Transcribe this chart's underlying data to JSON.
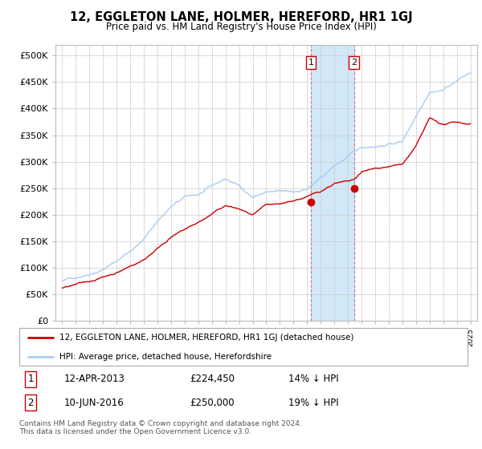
{
  "title": "12, EGGLETON LANE, HOLMER, HEREFORD, HR1 1GJ",
  "subtitle": "Price paid vs. HM Land Registry's House Price Index (HPI)",
  "legend_label1": "12, EGGLETON LANE, HOLMER, HEREFORD, HR1 1GJ (detached house)",
  "legend_label2": "HPI: Average price, detached house, Herefordshire",
  "annotation1_date": "12-APR-2013",
  "annotation1_price": "£224,450",
  "annotation1_hpi": "14% ↓ HPI",
  "annotation2_date": "10-JUN-2016",
  "annotation2_price": "£250,000",
  "annotation2_hpi": "19% ↓ HPI",
  "sale1_x": 2013.28,
  "sale1_y": 224450,
  "sale2_x": 2016.44,
  "sale2_y": 250000,
  "hpi_color": "#aaccee",
  "sale_color": "#cc0000",
  "highlight_color": "#d0e8f8",
  "ylim": [
    0,
    520000
  ],
  "xlim": [
    1994.5,
    2025.5
  ],
  "footer": "Contains HM Land Registry data © Crown copyright and database right 2024.\nThis data is licensed under the Open Government Licence v3.0.",
  "yticks": [
    0,
    50000,
    100000,
    150000,
    200000,
    250000,
    300000,
    350000,
    400000,
    450000,
    500000
  ],
  "ytick_labels": [
    "£0",
    "£50K",
    "£100K",
    "£150K",
    "£200K",
    "£250K",
    "£300K",
    "£350K",
    "£400K",
    "£450K",
    "£500K"
  ],
  "hpi_anchors_x": [
    1995,
    1996,
    1997,
    1998,
    1999,
    2000,
    2001,
    2002,
    2003,
    2004,
    2005,
    2006,
    2007,
    2008,
    2009,
    2010,
    2011,
    2012,
    2013,
    2014,
    2015,
    2016,
    2017,
    2018,
    2019,
    2020,
    2021,
    2022,
    2023,
    2024,
    2025
  ],
  "hpi_anchors_y": [
    75000,
    82000,
    92000,
    103000,
    118000,
    138000,
    160000,
    195000,
    222000,
    238000,
    242000,
    255000,
    268000,
    255000,
    235000,
    245000,
    243000,
    240000,
    248000,
    265000,
    288000,
    305000,
    320000,
    325000,
    330000,
    335000,
    385000,
    435000,
    440000,
    458000,
    472000
  ],
  "sale_anchors_x": [
    1995,
    1997,
    1999,
    2001,
    2003,
    2005,
    2007,
    2008,
    2009,
    2010,
    2011,
    2012,
    2013.28,
    2014,
    2015,
    2016.44,
    2017,
    2018,
    2019,
    2020,
    2021,
    2022,
    2023,
    2024,
    2024.5
  ],
  "sale_anchors_y": [
    62000,
    72000,
    90000,
    115000,
    160000,
    185000,
    215000,
    208000,
    195000,
    210000,
    208000,
    215000,
    224450,
    232000,
    248000,
    250000,
    265000,
    270000,
    275000,
    278000,
    310000,
    360000,
    348000,
    352000,
    350000
  ]
}
